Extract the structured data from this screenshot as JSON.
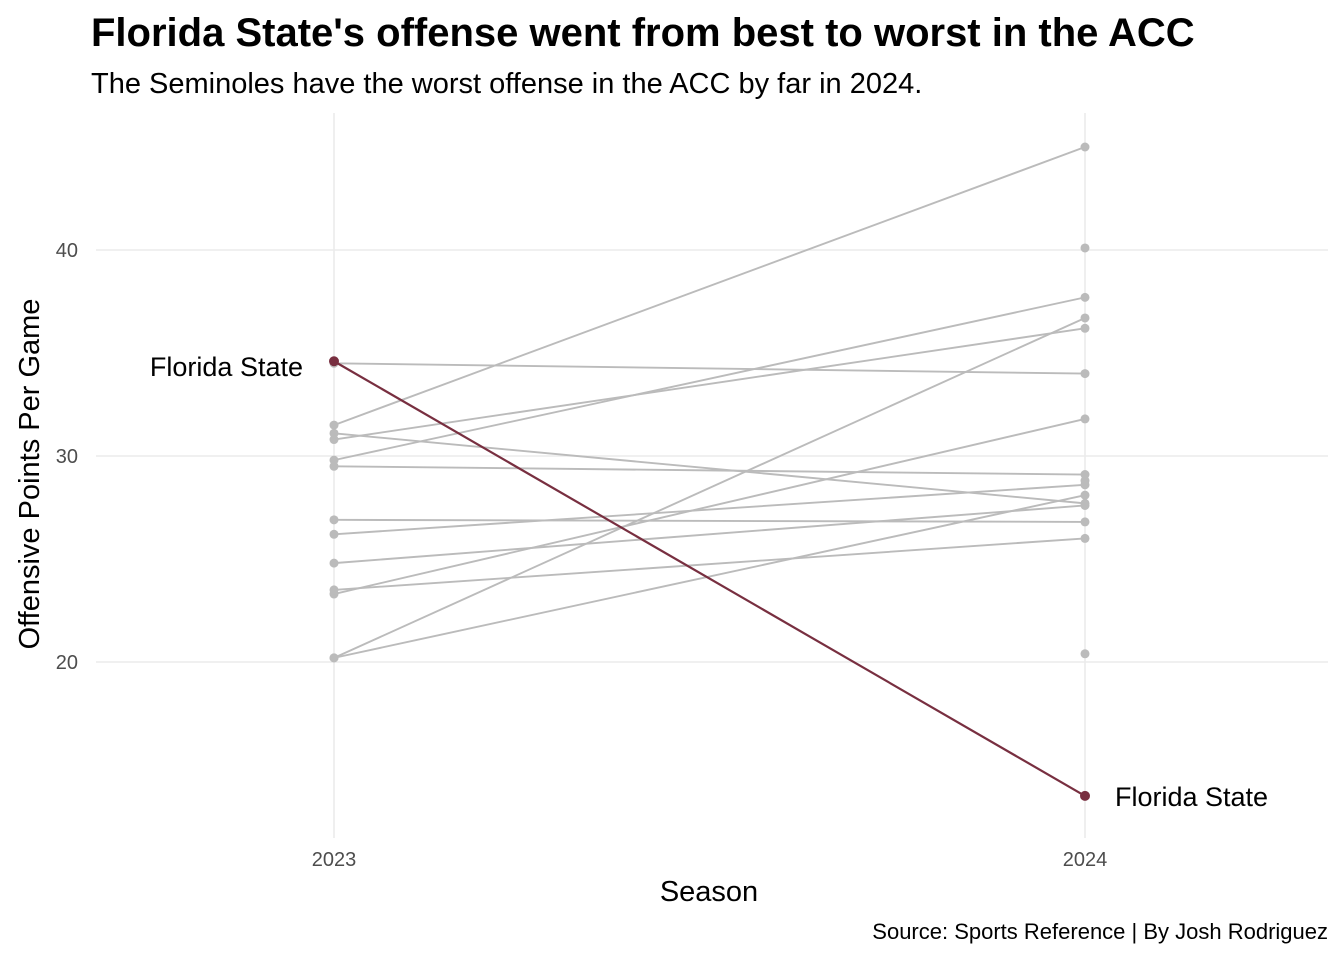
{
  "chart_data": {
    "type": "line",
    "title": "Florida State's offense went from best to worst in the ACC",
    "subtitle": "The Seminoles have the worst offense in the ACC by far in 2024.",
    "caption": "Source: Sports Reference | By Josh Rodriguez",
    "xlabel": "Season",
    "ylabel": "Offensive Points Per Game",
    "categories": [
      "2023",
      "2024"
    ],
    "ylim": [
      12.5,
      47
    ],
    "yticks": [
      20,
      30,
      40
    ],
    "grid": true,
    "colors": {
      "other": "#bbbbbb",
      "highlight": "#782f40",
      "grid": "#ebebeb",
      "tick": "#4d4d4d"
    },
    "highlight": {
      "label": "Florida State",
      "values": [
        34.6,
        13.5
      ]
    },
    "series": [
      {
        "values": [
          31.5,
          45.0
        ]
      },
      {
        "values": [
          29.8,
          37.7
        ]
      },
      {
        "values": [
          30.8,
          36.2
        ]
      },
      {
        "values": [
          34.5,
          34.0
        ]
      },
      {
        "values": [
          20.2,
          36.7
        ]
      },
      {
        "values": [
          23.3,
          31.8
        ]
      },
      {
        "values": [
          29.5,
          29.1
        ]
      },
      {
        "values": [
          31.1,
          27.7
        ]
      },
      {
        "values": [
          26.9,
          26.8
        ]
      },
      {
        "values": [
          26.2,
          28.6
        ]
      },
      {
        "values": [
          24.8,
          27.6
        ]
      },
      {
        "values": [
          23.5,
          26.0
        ]
      },
      {
        "values": [
          20.2,
          28.1
        ]
      }
    ],
    "extra_points": [
      {
        "x": "2024",
        "y": 40.1
      },
      {
        "x": "2024",
        "y": 28.8
      },
      {
        "x": "2024",
        "y": 20.4
      }
    ]
  }
}
